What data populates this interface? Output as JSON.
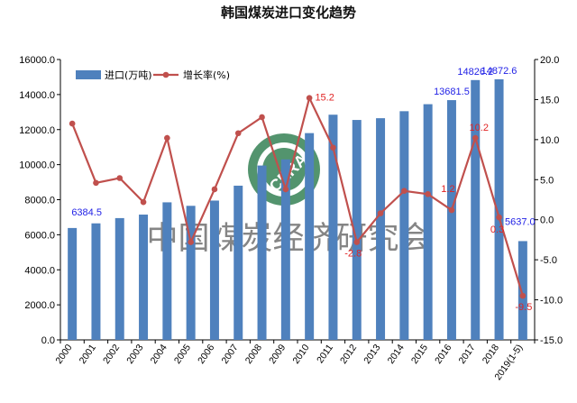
{
  "chart_data": {
    "type": "bar",
    "title": "韩国煤炭进口变化趋势",
    "categories": [
      "2000",
      "2001",
      "2002",
      "2003",
      "2004",
      "2005",
      "2006",
      "2007",
      "2008",
      "2009",
      "2010",
      "2011",
      "2012",
      "2013",
      "2014",
      "2015",
      "2016",
      "2017",
      "2018",
      "2019(1-5)"
    ],
    "series": [
      {
        "name": "进口(万吨)",
        "type": "bar",
        "axis": "left",
        "color": "#4f81bd",
        "values": [
          6384.5,
          6650,
          6950,
          7150,
          7850,
          7650,
          7950,
          8800,
          9950,
          10300,
          11800,
          12850,
          12550,
          12650,
          13050,
          13450,
          13681.5,
          14826.2,
          14872.6,
          5637.0
        ]
      },
      {
        "name": "增长率(%)",
        "type": "line",
        "axis": "right",
        "color": "#c0504d",
        "values": [
          12.0,
          4.6,
          5.2,
          2.2,
          10.2,
          -2.8,
          3.8,
          10.8,
          12.8,
          3.8,
          15.2,
          9.0,
          -2.8,
          0.8,
          3.6,
          3.2,
          1.2,
          10.2,
          0.3,
          -9.5
        ]
      }
    ],
    "bar_labels": [
      {
        "index": 0,
        "text": "6384.5"
      },
      {
        "index": 16,
        "text": "13681.5"
      },
      {
        "index": 17,
        "text": "14826.2"
      },
      {
        "index": 18,
        "text": "14872.6"
      },
      {
        "index": 19,
        "text": "5637.0"
      }
    ],
    "rate_labels": [
      {
        "index": 10,
        "text": "15.2"
      },
      {
        "index": 12,
        "text": "-2.8"
      },
      {
        "index": 16,
        "text": "1.2"
      },
      {
        "index": 17,
        "text": "10.2"
      },
      {
        "index": 18,
        "text": "0.3"
      },
      {
        "index": 19,
        "text": "-9.5"
      }
    ],
    "y_left": {
      "min": 0,
      "max": 16000,
      "step": 2000,
      "ticks": [
        "0.0",
        "2000.0",
        "4000.0",
        "6000.0",
        "8000.0",
        "10000.0",
        "12000.0",
        "14000.0",
        "16000.0"
      ]
    },
    "y_right": {
      "min": -15,
      "max": 20,
      "step": 5,
      "ticks": [
        "-15.0",
        "-10.0",
        "-5.0",
        "0.0",
        "5.0",
        "10.0",
        "15.0",
        "20.0"
      ]
    },
    "legend_position": "top-left",
    "grid": false
  },
  "watermark": {
    "text": "中国煤炭经济研究会",
    "logo_text": "CERA",
    "logo_color": "#2e7d4f"
  }
}
